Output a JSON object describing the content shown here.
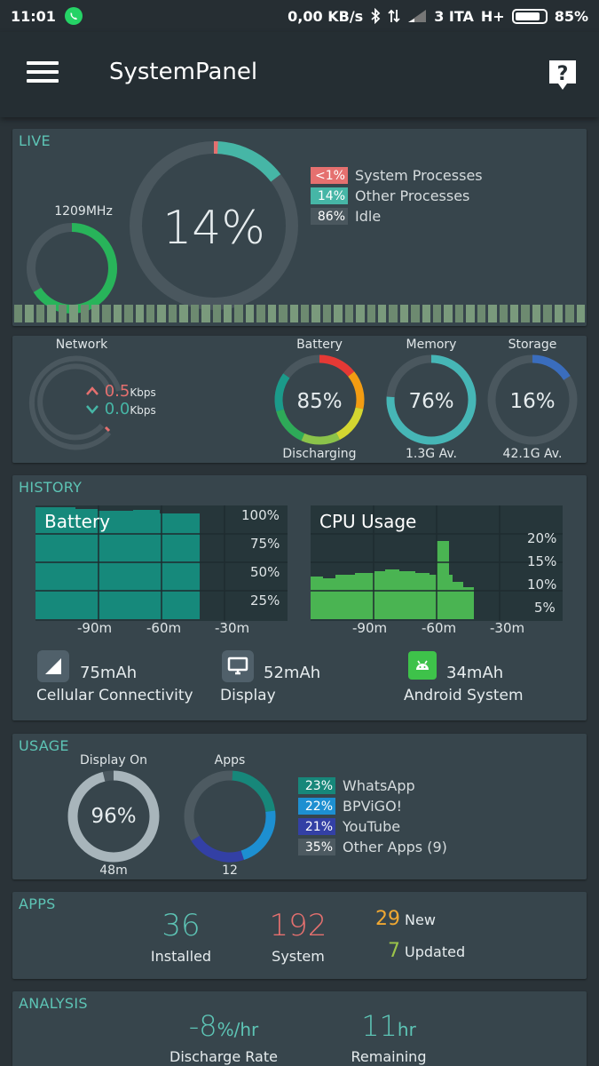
{
  "statusbar": {
    "time": "11:01",
    "data_speed": "0,00 KB/s",
    "carrier": "3 ITA",
    "network_type": "H+",
    "battery_percent": "85%"
  },
  "appbar": {
    "title": "SystemPanel"
  },
  "live": {
    "label": "LIVE",
    "cpu_freq": "1209MHz",
    "cpu_freq_fraction": 0.66,
    "cpu_percent": "14%",
    "breakdown": [
      {
        "value": "<1%",
        "label": "System Processes",
        "color": "#e5706f",
        "fraction": 0.01
      },
      {
        "value": "14%",
        "label": "Other Processes",
        "color": "#46b6a6",
        "fraction": 0.14
      },
      {
        "value": "86%",
        "label": "Idle",
        "color": "#4a575e",
        "fraction": 0.86
      }
    ]
  },
  "resources": {
    "network": {
      "label": "Network",
      "up_value": "0.5",
      "up_unit": "Kbps",
      "down_value": "0.0",
      "down_unit": "Kbps"
    },
    "battery": {
      "label": "Battery",
      "value": "85%",
      "fraction": 0.85,
      "status": "Discharging"
    },
    "memory": {
      "label": "Memory",
      "value": "76%",
      "fraction": 0.76,
      "available": "1.3G Av."
    },
    "storage": {
      "label": "Storage",
      "value": "16%",
      "fraction": 0.16,
      "available": "42.1G Av."
    }
  },
  "history": {
    "label": "HISTORY",
    "battery_chart": {
      "title": "Battery",
      "y_ticks": [
        "100%",
        "75%",
        "50%",
        "25%"
      ],
      "x_ticks": [
        "-90m",
        "-60m",
        "-30m"
      ]
    },
    "cpu_chart": {
      "title": "CPU Usage",
      "y_ticks": [
        "20%",
        "15%",
        "10%",
        "5%"
      ],
      "x_ticks": [
        "-90m",
        "-60m",
        "-30m"
      ]
    },
    "consumers": [
      {
        "icon": "signal-icon",
        "value": "75mAh",
        "label": "Cellular Connectivity"
      },
      {
        "icon": "display-icon",
        "value": "52mAh",
        "label": "Display"
      },
      {
        "icon": "android-icon",
        "value": "34mAh",
        "label": "Android System"
      }
    ]
  },
  "usage": {
    "label": "USAGE",
    "display_on": {
      "label": "Display On",
      "value": "96%",
      "fraction": 0.96,
      "duration": "48m"
    },
    "apps": {
      "label": "Apps",
      "count": "12",
      "items": [
        {
          "value": "23%",
          "label": "WhatsApp",
          "color": "#17877a",
          "fraction": 0.23
        },
        {
          "value": "22%",
          "label": "BPViGO!",
          "color": "#1d8fd1",
          "fraction": 0.22
        },
        {
          "value": "21%",
          "label": "YouTube",
          "color": "#3340a5",
          "fraction": 0.21
        },
        {
          "value": "35%",
          "label": "Other Apps (9)",
          "color": "#4d5a61",
          "fraction": 0.35
        }
      ]
    }
  },
  "apps": {
    "label": "APPS",
    "installed_value": "36",
    "installed_label": "Installed",
    "system_value": "192",
    "system_label": "System",
    "new_value": "29",
    "new_label": "New",
    "updated_value": "7",
    "updated_label": "Updated"
  },
  "analysis": {
    "label": "ANALYSIS",
    "discharge_value": "-8",
    "discharge_unit": "%/hr",
    "discharge_label": "Discharge Rate",
    "remaining_value": "11",
    "remaining_unit": "hr",
    "remaining_label": "Remaining"
  }
}
